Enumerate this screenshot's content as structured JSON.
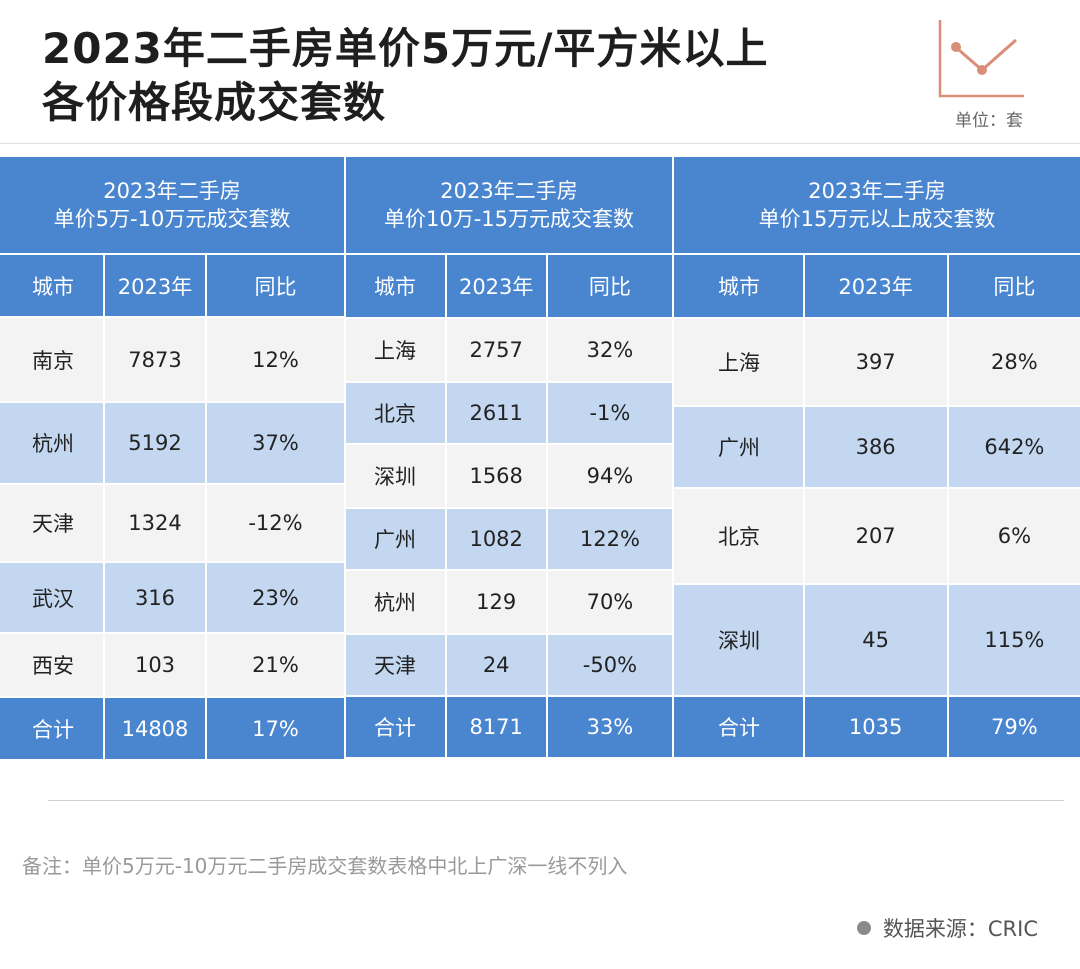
{
  "title_line1": "2023年二手房单价5万元/平方米以上",
  "title_line2": "各价格段成交套数",
  "unit": "单位：套",
  "note": "备注：单价5万元-10万元二手房成交套数表格中北上广深一线不列入",
  "source": "数据来源：CRIC",
  "colors": {
    "header_blue": "#4a86d0",
    "row_blue": "#c3d8f0",
    "row_gray": "#f3f3f3",
    "logo": "#d98e78"
  },
  "icons": {
    "logo": "line-chart-logo-icon",
    "source": "dot-icon"
  },
  "chart_data": {
    "type": "table",
    "tables": [
      {
        "title_line1": "2023年二手房",
        "title_line2": "单价5万-10万元成交套数",
        "columns": [
          "城市",
          "2023年",
          "同比"
        ],
        "rows": [
          [
            "南京",
            "7873",
            "12%"
          ],
          [
            "杭州",
            "5192",
            "37%"
          ],
          [
            "天津",
            "1324",
            "-12%"
          ],
          [
            "武汉",
            "316",
            "23%"
          ],
          [
            "西安",
            "103",
            "21%"
          ]
        ],
        "total": [
          "合计",
          "14808",
          "17%"
        ]
      },
      {
        "title_line1": "2023年二手房",
        "title_line2": "单价10万-15万元成交套数",
        "columns": [
          "城市",
          "2023年",
          "同比"
        ],
        "rows": [
          [
            "上海",
            "2757",
            "32%"
          ],
          [
            "北京",
            "2611",
            "-1%"
          ],
          [
            "深圳",
            "1568",
            "94%"
          ],
          [
            "广州",
            "1082",
            "122%"
          ],
          [
            "杭州",
            "129",
            "70%"
          ],
          [
            "天津",
            "24",
            "-50%"
          ]
        ],
        "total": [
          "合计",
          "8171",
          "33%"
        ]
      },
      {
        "title_line1": "2023年二手房",
        "title_line2": "单价15万元以上成交套数",
        "columns": [
          "城市",
          "2023年",
          "同比"
        ],
        "rows": [
          [
            "上海",
            "397",
            "28%"
          ],
          [
            "广州",
            "386",
            "642%"
          ],
          [
            "北京",
            "207",
            "6%"
          ],
          [
            "深圳",
            "45",
            "115%"
          ]
        ],
        "total": [
          "合计",
          "1035",
          "79%"
        ]
      }
    ]
  }
}
